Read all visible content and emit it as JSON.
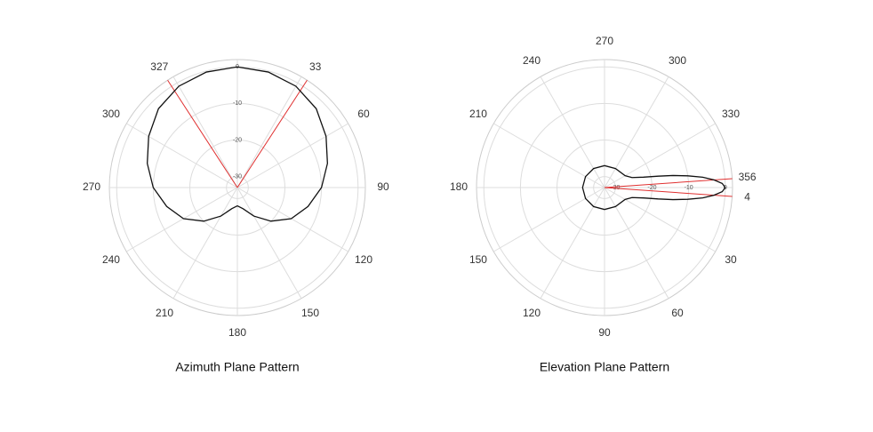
{
  "chart_data": [
    {
      "type": "polar",
      "title": "Azimuth Plane Pattern",
      "zero_location": "N",
      "direction": "clockwise",
      "theta": [
        0,
        15,
        30,
        45,
        60,
        75,
        90,
        105,
        120,
        135,
        150,
        165,
        180,
        195,
        210,
        225,
        240,
        255,
        270,
        285,
        300,
        315,
        330,
        345
      ],
      "values": [
        0,
        -0.3,
        -1,
        -2.5,
        -5,
        -7.5,
        -10,
        -13,
        -16,
        -20,
        -24,
        -27,
        -28,
        -27,
        -24,
        -20,
        -16,
        -13,
        -10,
        -7.5,
        -5,
        -2.5,
        -1,
        -0.3
      ],
      "color": "#111111",
      "marker_color": "#e03030",
      "markers": [
        327,
        33
      ],
      "rlim": [
        -33,
        2
      ],
      "rticks": [
        0,
        -10,
        -20,
        -30
      ],
      "thetagrid": [
        0,
        30,
        60,
        90,
        120,
        150,
        180,
        210,
        240,
        270,
        300,
        330
      ],
      "thetaticks": [
        60,
        90,
        120,
        150,
        180,
        210,
        240,
        270,
        300
      ]
    },
    {
      "type": "polar",
      "title": "Elevation Plane Pattern",
      "zero_location": "E",
      "direction": "clockwise",
      "theta": [
        0,
        2,
        4,
        6,
        8,
        10,
        12,
        15,
        20,
        30,
        60,
        90,
        120,
        150,
        180,
        210,
        240,
        270,
        300,
        330,
        340,
        345,
        348,
        350,
        352,
        354,
        356,
        358
      ],
      "values": [
        0,
        -0.8,
        -3,
        -6,
        -10,
        -14,
        -18,
        -22,
        -25,
        -26.5,
        -27,
        -27,
        -27,
        -27,
        -27,
        -27,
        -27,
        -27,
        -27,
        -26.5,
        -25,
        -22,
        -18,
        -14,
        -10,
        -6,
        -3,
        -0.8
      ],
      "color": "#111111",
      "marker_color": "#e03030",
      "markers": [
        356,
        4
      ],
      "rlim": [
        -33,
        2
      ],
      "rticks": [
        0,
        -10,
        -20,
        -30
      ],
      "thetagrid": [
        0,
        30,
        60,
        90,
        120,
        150,
        180,
        210,
        240,
        270,
        300,
        330
      ],
      "thetaticks": [
        30,
        60,
        90,
        120,
        150,
        180,
        210,
        240,
        270,
        300,
        330
      ]
    }
  ]
}
